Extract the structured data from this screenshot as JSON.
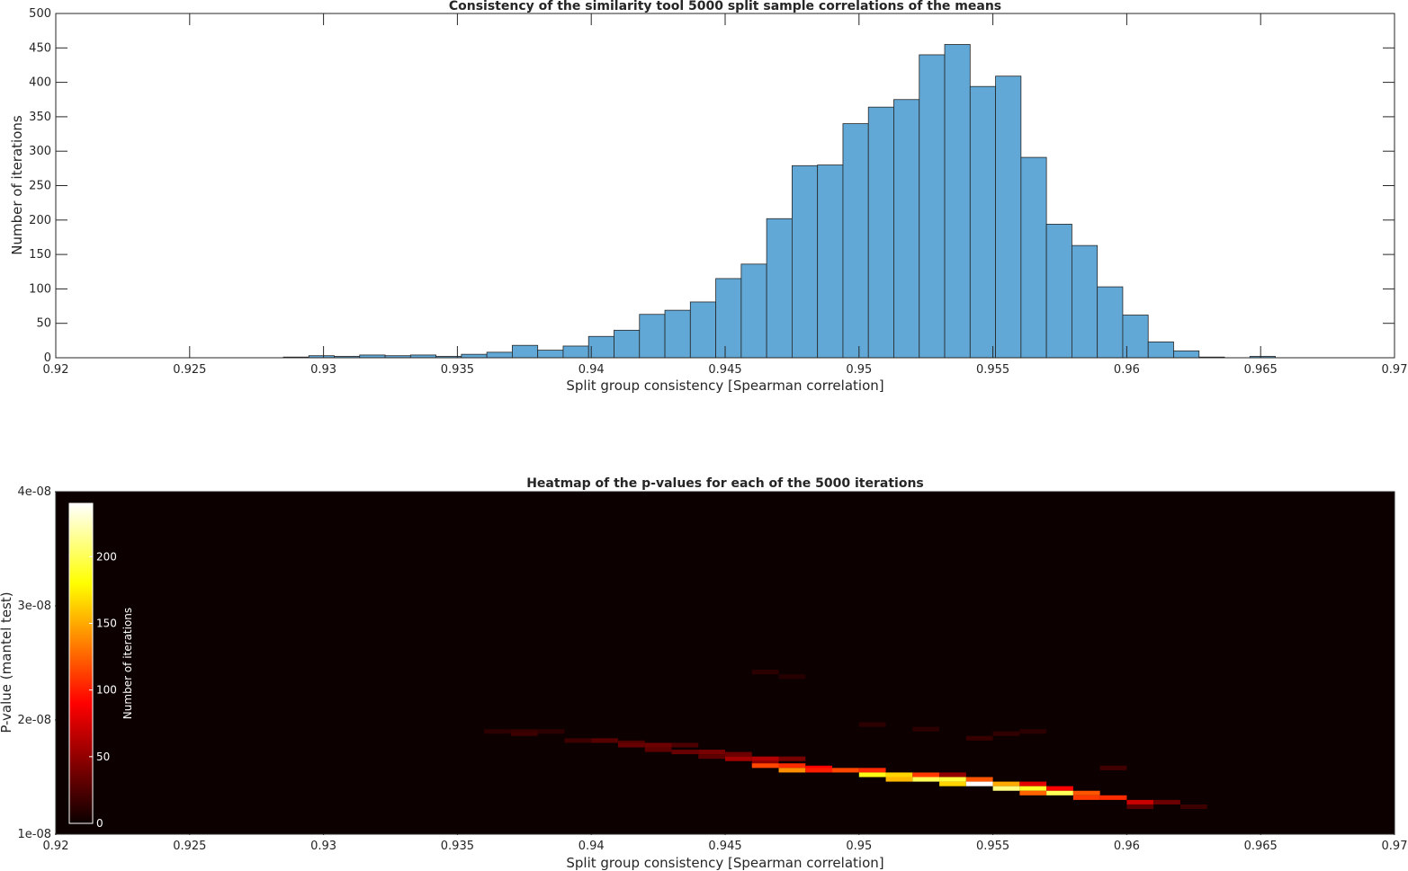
{
  "chart_data": [
    {
      "type": "bar",
      "title": "Consistency of the similarity tool 5000 split sample correlations of the means",
      "xlabel": "Split group consistency [Spearman correlation]",
      "ylabel": "Number of iterations",
      "xlim": [
        0.92,
        0.97
      ],
      "ylim": [
        0,
        500
      ],
      "xticks": [
        "0.92",
        "0.925",
        "0.93",
        "0.935",
        "0.94",
        "0.945",
        "0.95",
        "0.955",
        "0.96",
        "0.965",
        "0.97"
      ],
      "yticks": [
        "0",
        "50",
        "100",
        "150",
        "200",
        "250",
        "300",
        "350",
        "400",
        "450",
        "500"
      ],
      "bin_width": 0.00095,
      "bin_edges_start": 0.9285,
      "values": [
        1,
        3,
        2,
        4,
        3,
        4,
        2,
        5,
        8,
        18,
        11,
        17,
        31,
        40,
        63,
        69,
        81,
        115,
        136,
        202,
        279,
        280,
        340,
        364,
        375,
        440,
        455,
        394,
        409,
        291,
        194,
        163,
        103,
        62,
        23,
        10,
        1,
        0,
        2
      ],
      "bar_color": "#61A8D7",
      "grid": false
    },
    {
      "type": "heatmap",
      "title": "Heatmap of the p-values for each of the 5000 iterations",
      "xlabel": "Split group consistency [Spearman correlation]",
      "ylabel": "P-value (mantel test)",
      "xlim": [
        0.92,
        0.97
      ],
      "ylim": [
        1e-08,
        4e-08
      ],
      "xticks": [
        "0.92",
        "0.925",
        "0.93",
        "0.935",
        "0.94",
        "0.945",
        "0.95",
        "0.955",
        "0.96",
        "0.965",
        "0.97"
      ],
      "yticks": [
        "1e-08",
        "2e-08",
        "3e-08",
        "4e-08"
      ],
      "colormap": "hot",
      "colorbar": {
        "label": "Number of iterations",
        "ticks": [
          "0",
          "50",
          "100",
          "150",
          "200"
        ],
        "range": [
          0,
          240
        ],
        "position": "inside top-left"
      },
      "cells": [
        {
          "x": 0.9365,
          "y": 1.9e-08,
          "count": 12
        },
        {
          "x": 0.9375,
          "y": 1.9e-08,
          "count": 14
        },
        {
          "x": 0.9385,
          "y": 1.9e-08,
          "count": 12
        },
        {
          "x": 0.9375,
          "y": 1.88e-08,
          "count": 18
        },
        {
          "x": 0.9395,
          "y": 1.82e-08,
          "count": 18
        },
        {
          "x": 0.9405,
          "y": 1.82e-08,
          "count": 28
        },
        {
          "x": 0.9415,
          "y": 1.8e-08,
          "count": 26
        },
        {
          "x": 0.9415,
          "y": 1.78e-08,
          "count": 34
        },
        {
          "x": 0.9425,
          "y": 1.78e-08,
          "count": 36
        },
        {
          "x": 0.9435,
          "y": 1.78e-08,
          "count": 24
        },
        {
          "x": 0.9425,
          "y": 1.74e-08,
          "count": 30
        },
        {
          "x": 0.9435,
          "y": 1.72e-08,
          "count": 34
        },
        {
          "x": 0.9445,
          "y": 1.72e-08,
          "count": 40
        },
        {
          "x": 0.9455,
          "y": 1.7e-08,
          "count": 36
        },
        {
          "x": 0.9445,
          "y": 1.68e-08,
          "count": 30
        },
        {
          "x": 0.9455,
          "y": 1.66e-08,
          "count": 56
        },
        {
          "x": 0.9465,
          "y": 1.66e-08,
          "count": 62
        },
        {
          "x": 0.9475,
          "y": 1.66e-08,
          "count": 40
        },
        {
          "x": 0.9465,
          "y": 1.62e-08,
          "count": 48
        },
        {
          "x": 0.9465,
          "y": 1.6e-08,
          "count": 115
        },
        {
          "x": 0.9475,
          "y": 1.6e-08,
          "count": 105
        },
        {
          "x": 0.9485,
          "y": 1.58e-08,
          "count": 90
        },
        {
          "x": 0.9475,
          "y": 1.56e-08,
          "count": 140
        },
        {
          "x": 0.9485,
          "y": 1.56e-08,
          "count": 100
        },
        {
          "x": 0.9495,
          "y": 1.56e-08,
          "count": 115
        },
        {
          "x": 0.9505,
          "y": 1.56e-08,
          "count": 105
        },
        {
          "x": 0.9505,
          "y": 1.52e-08,
          "count": 185
        },
        {
          "x": 0.9515,
          "y": 1.52e-08,
          "count": 165
        },
        {
          "x": 0.9525,
          "y": 1.52e-08,
          "count": 110
        },
        {
          "x": 0.9535,
          "y": 1.52e-08,
          "count": 50
        },
        {
          "x": 0.9515,
          "y": 1.48e-08,
          "count": 155
        },
        {
          "x": 0.9525,
          "y": 1.48e-08,
          "count": 200
        },
        {
          "x": 0.9535,
          "y": 1.48e-08,
          "count": 195
        },
        {
          "x": 0.9545,
          "y": 1.48e-08,
          "count": 120
        },
        {
          "x": 0.9535,
          "y": 1.44e-08,
          "count": 165
        },
        {
          "x": 0.9545,
          "y": 1.44e-08,
          "count": 240
        },
        {
          "x": 0.9555,
          "y": 1.44e-08,
          "count": 150
        },
        {
          "x": 0.9565,
          "y": 1.44e-08,
          "count": 80
        },
        {
          "x": 0.9555,
          "y": 1.4e-08,
          "count": 210
        },
        {
          "x": 0.9565,
          "y": 1.4e-08,
          "count": 190
        },
        {
          "x": 0.9575,
          "y": 1.4e-08,
          "count": 90
        },
        {
          "x": 0.9565,
          "y": 1.36e-08,
          "count": 125
        },
        {
          "x": 0.9575,
          "y": 1.36e-08,
          "count": 200
        },
        {
          "x": 0.9585,
          "y": 1.36e-08,
          "count": 120
        },
        {
          "x": 0.9585,
          "y": 1.32e-08,
          "count": 110
        },
        {
          "x": 0.9595,
          "y": 1.32e-08,
          "count": 105
        },
        {
          "x": 0.9605,
          "y": 1.28e-08,
          "count": 70
        },
        {
          "x": 0.9615,
          "y": 1.28e-08,
          "count": 35
        },
        {
          "x": 0.9605,
          "y": 1.24e-08,
          "count": 28
        },
        {
          "x": 0.9625,
          "y": 1.24e-08,
          "count": 18
        },
        {
          "x": 0.9465,
          "y": 2.42e-08,
          "count": 12
        },
        {
          "x": 0.9475,
          "y": 2.38e-08,
          "count": 10
        },
        {
          "x": 0.9505,
          "y": 1.96e-08,
          "count": 12
        },
        {
          "x": 0.9525,
          "y": 1.92e-08,
          "count": 12
        },
        {
          "x": 0.9555,
          "y": 1.88e-08,
          "count": 14
        },
        {
          "x": 0.9565,
          "y": 1.9e-08,
          "count": 12
        },
        {
          "x": 0.9545,
          "y": 1.84e-08,
          "count": 16
        },
        {
          "x": 0.9595,
          "y": 1.58e-08,
          "count": 20
        }
      ]
    }
  ]
}
